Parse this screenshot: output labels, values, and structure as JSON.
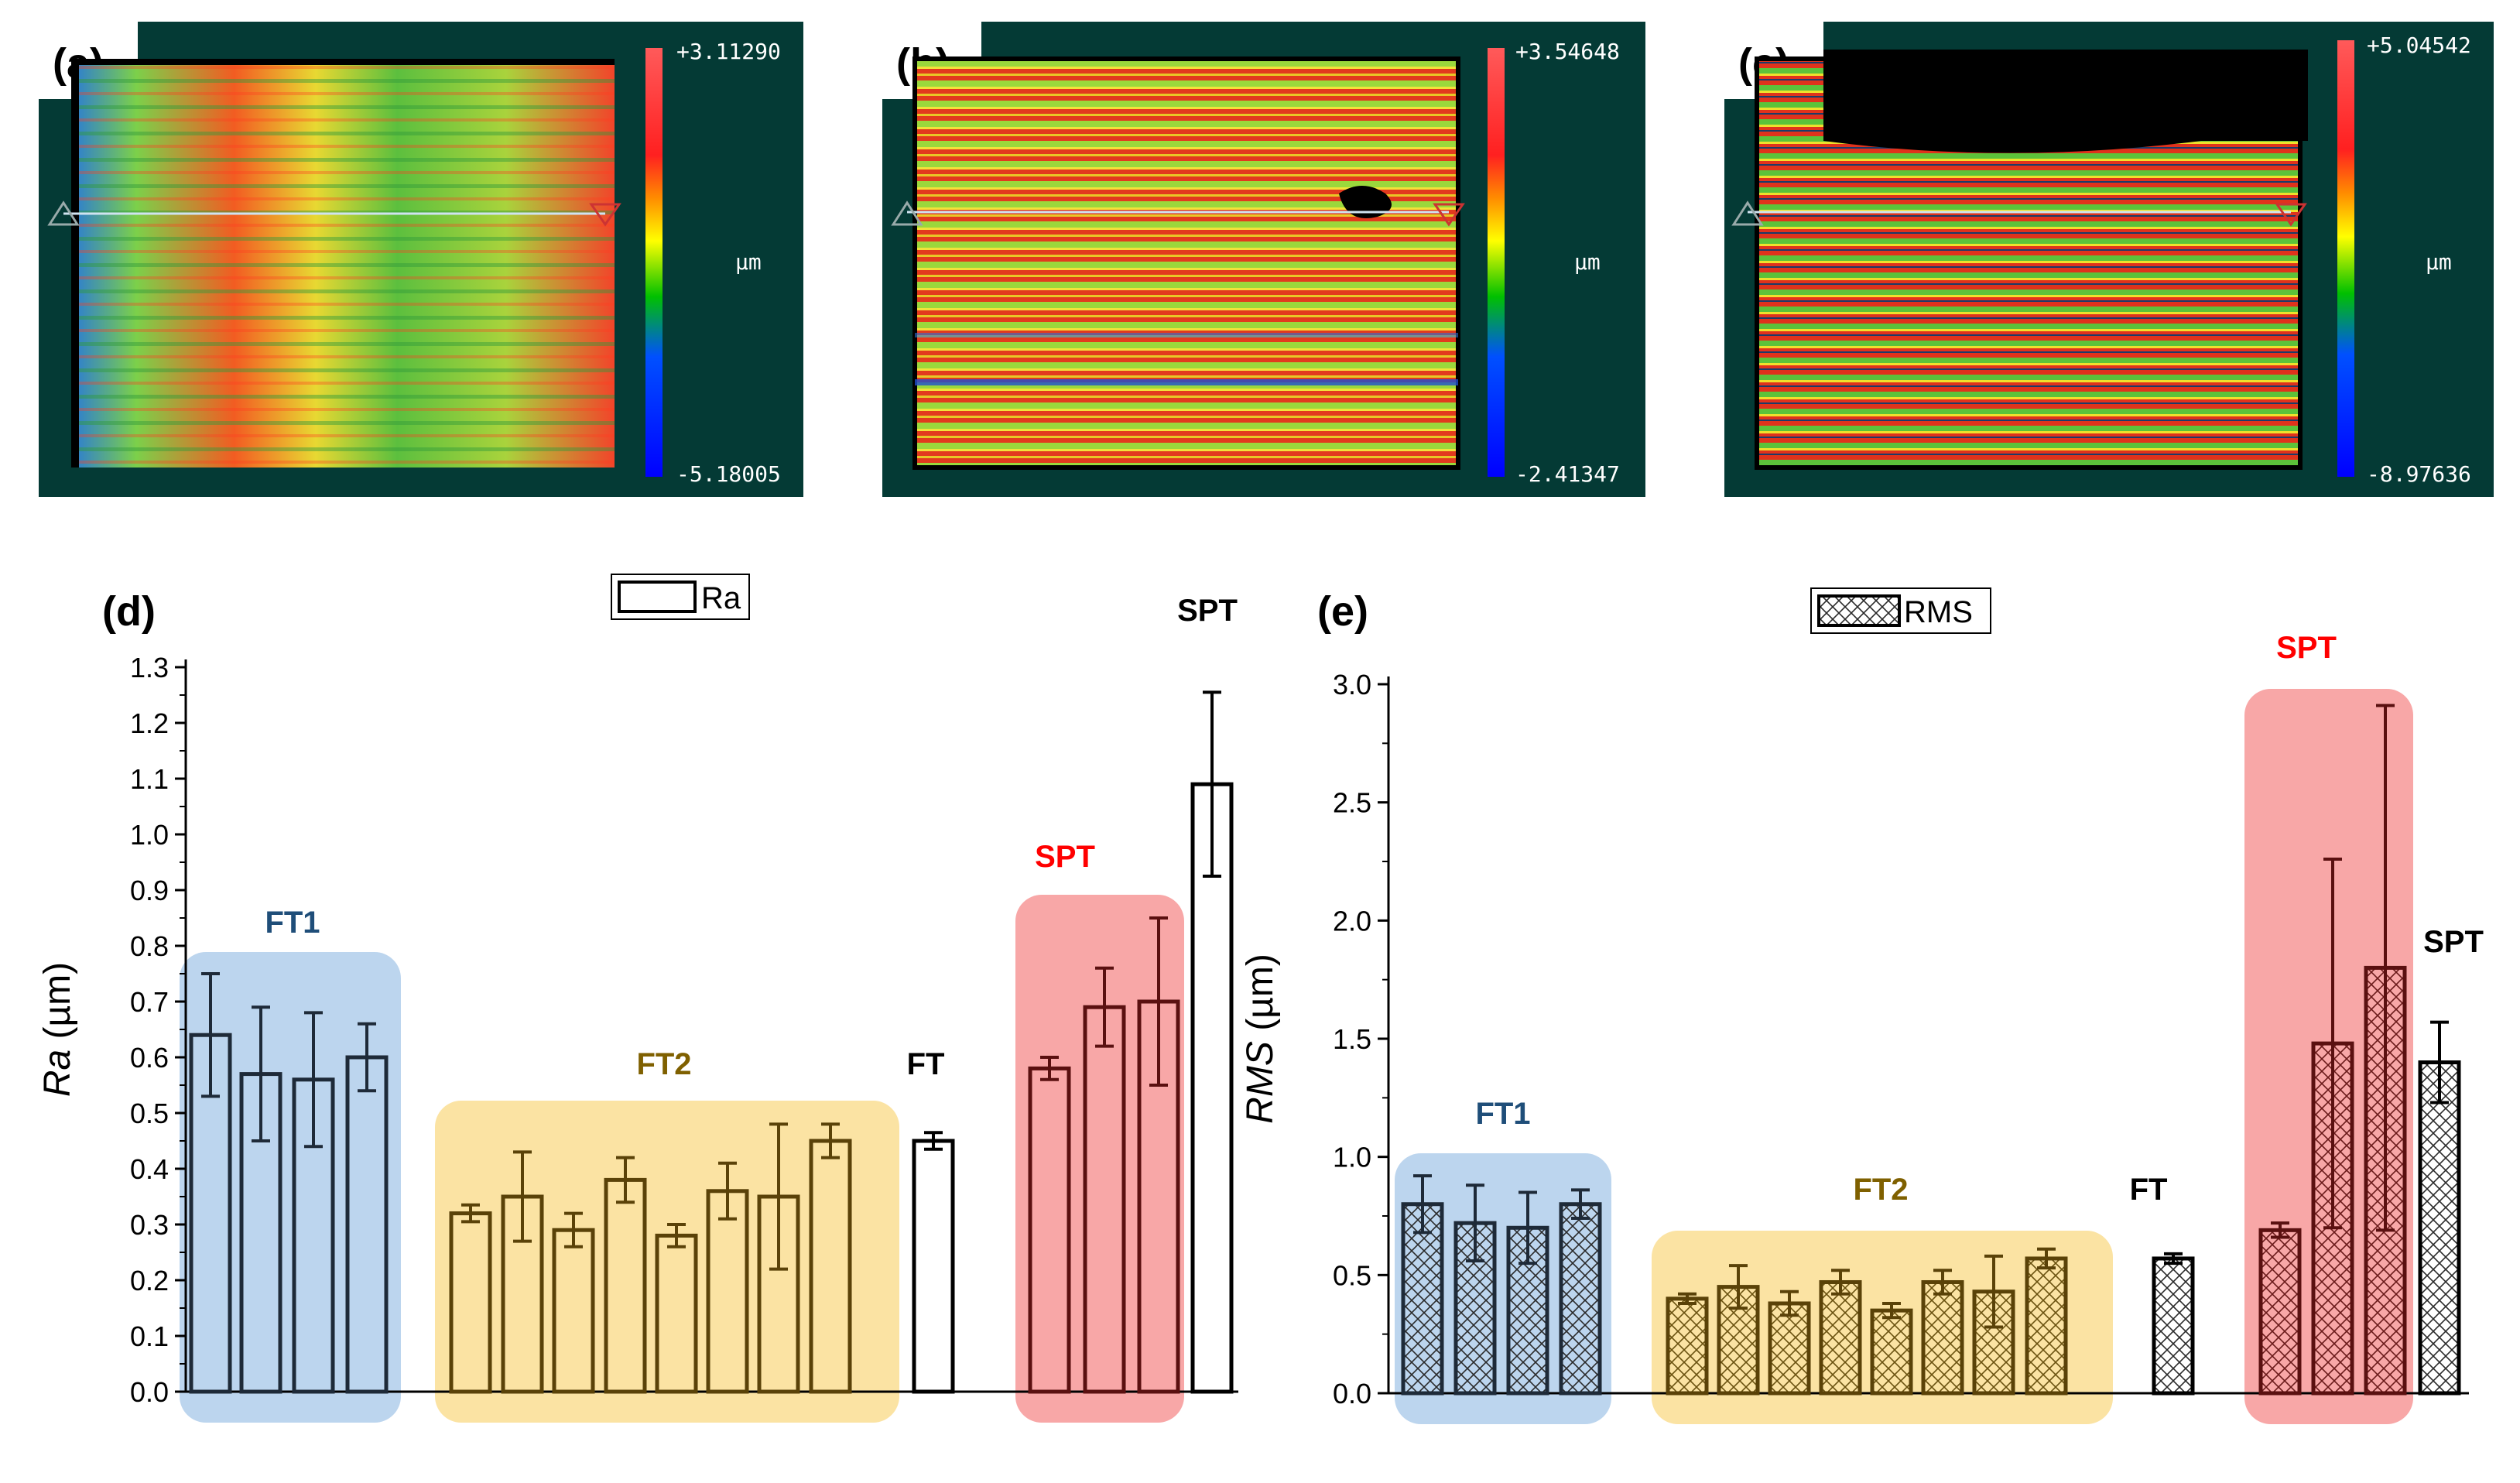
{
  "panels": {
    "a": {
      "label": "(a)",
      "cb_max": "+3.11290",
      "cb_min": "-5.18005",
      "cb_unit": "µm"
    },
    "b": {
      "label": "(b)",
      "cb_max": "+3.54648",
      "cb_min": "-2.41347",
      "cb_unit": "µm"
    },
    "c": {
      "label": "(c)",
      "cb_max": "+5.04542",
      "cb_min": "-8.97636",
      "cb_unit": "µm"
    },
    "d": {
      "label": "(d)"
    },
    "e": {
      "label": "(e)"
    }
  },
  "colors": {
    "map_bg": "#043a35",
    "ft1_box": "#bcd5ee",
    "ft2_box": "#fbe3a3",
    "spt_box": "#f8a7a7",
    "ft1_text": "#1f4e79",
    "ft2_text": "#7f6000",
    "spt_red_text": "#ff0000",
    "bar_dark": "#1e1e1e"
  },
  "chart_data": [
    {
      "type": "bar",
      "panel": "(d)",
      "ylabel_italic": "Ra",
      "ylabel_unit": " (µm)",
      "legend": "Ra",
      "ylim": [
        0,
        1.3
      ],
      "yticks": [
        "0.0",
        "0.1",
        "0.2",
        "0.3",
        "0.4",
        "0.5",
        "0.6",
        "0.7",
        "0.8",
        "0.9",
        "1.0",
        "1.1",
        "1.2",
        "1.3"
      ],
      "groups": [
        {
          "label": "FT1",
          "values": [
            0.64,
            0.57,
            0.56,
            0.6
          ],
          "errors": [
            0.11,
            0.12,
            0.12,
            0.06
          ]
        },
        {
          "label": "FT2",
          "values": [
            0.32,
            0.35,
            0.29,
            0.38,
            0.28,
            0.36,
            0.35,
            0.45
          ],
          "errors": [
            0.015,
            0.08,
            0.03,
            0.04,
            0.02,
            0.05,
            0.13,
            0.03
          ]
        },
        {
          "label": "FT",
          "values": [
            0.45
          ],
          "errors": [
            0.015
          ]
        },
        {
          "label": "SPT",
          "values": [
            0.58,
            0.69,
            0.7
          ],
          "errors": [
            0.02,
            0.07,
            0.15
          ]
        },
        {
          "label": "SPT",
          "values": [
            1.09
          ],
          "errors": [
            0.165
          ]
        }
      ]
    },
    {
      "type": "bar",
      "panel": "(e)",
      "ylabel_italic": "RMS",
      "ylabel_unit": " (µm)",
      "legend": "RMS",
      "ylim": [
        0,
        3.0
      ],
      "yticks": [
        "0.0",
        "0.5",
        "1.0",
        "1.5",
        "2.0",
        "2.5",
        "3.0"
      ],
      "groups": [
        {
          "label": "FT1",
          "values": [
            0.8,
            0.72,
            0.7,
            0.8
          ],
          "errors": [
            0.12,
            0.16,
            0.15,
            0.06
          ]
        },
        {
          "label": "FT2",
          "values": [
            0.4,
            0.45,
            0.38,
            0.47,
            0.35,
            0.47,
            0.43,
            0.57
          ],
          "errors": [
            0.02,
            0.09,
            0.05,
            0.05,
            0.03,
            0.05,
            0.15,
            0.04
          ]
        },
        {
          "label": "FT",
          "values": [
            0.57
          ],
          "errors": [
            0.02
          ]
        },
        {
          "label": "SPT",
          "values": [
            0.69,
            1.48,
            1.8
          ],
          "errors": [
            0.03,
            0.78,
            1.11
          ]
        },
        {
          "label": "SPT",
          "values": [
            1.4
          ],
          "errors": [
            0.17
          ]
        }
      ]
    }
  ]
}
